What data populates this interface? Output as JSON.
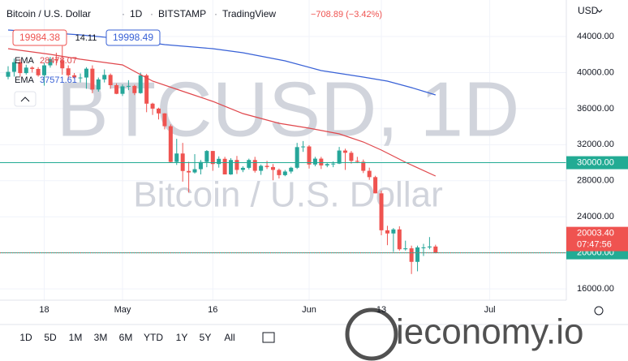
{
  "chart_data": {
    "type": "candlestick",
    "title": "Bitcoin / U.S. Dollar",
    "interval": "1D",
    "exchange": "BITSTAMP",
    "source": "TradingView",
    "change": "−708.89 (−3.42%)",
    "currency": "USD",
    "bid": "19984.38",
    "spread": "14.11",
    "ask": "19998.49",
    "watermark": "BTCUSD, 1D",
    "watermark_subtitle": "Bitcoin / U.S. Dollar",
    "up_color": "#26a69a",
    "down_color": "#ef5350",
    "x": [
      "Apr 12",
      "Apr 13",
      "Apr 14",
      "Apr 15",
      "Apr 16",
      "Apr 17",
      "Apr 18",
      "Apr 19",
      "Apr 20",
      "Apr 21",
      "Apr 22",
      "Apr 23",
      "Apr 24",
      "Apr 25",
      "Apr 26",
      "Apr 27",
      "Apr 28",
      "Apr 29",
      "Apr 30",
      "May 1",
      "May 2",
      "May 3",
      "May 4",
      "May 5",
      "May 6",
      "May 7",
      "May 8",
      "May 9",
      "May 10",
      "May 11",
      "May 12",
      "May 13",
      "May 14",
      "May 15",
      "May 16",
      "May 17",
      "May 18",
      "May 19",
      "May 20",
      "May 21",
      "May 22",
      "May 23",
      "May 24",
      "May 25",
      "May 26",
      "May 27",
      "May 28",
      "May 29",
      "May 30",
      "May 31",
      "Jun 1",
      "Jun 2",
      "Jun 3",
      "Jun 4",
      "Jun 5",
      "Jun 6",
      "Jun 7",
      "Jun 8",
      "Jun 9",
      "Jun 10",
      "Jun 11",
      "Jun 12",
      "Jun 13",
      "Jun 14",
      "Jun 15",
      "Jun 16",
      "Jun 17",
      "Jun 18",
      "Jun 19",
      "Jun 20",
      "Jun 21",
      "Jun 22"
    ],
    "open": [
      39530,
      40080,
      41150,
      39940,
      40550,
      40400,
      39700,
      40800,
      41500,
      41350,
      40470,
      39700,
      39450,
      39450,
      40430,
      38120,
      39240,
      39740,
      38600,
      37640,
      38470,
      38520,
      37720,
      39690,
      36550,
      36000,
      35470,
      34050,
      30080,
      31020,
      29080,
      28920,
      29280,
      30080,
      31300,
      29850,
      30430,
      28700,
      30300,
      29200,
      29430,
      30300,
      29100,
      29650,
      29520,
      29200,
      28620,
      29020,
      29440,
      31730,
      31800,
      29800,
      30450,
      29700,
      29850,
      29900,
      31350,
      31100,
      30200,
      30100,
      29100,
      28400,
      26600,
      22500,
      22150,
      22600,
      20400,
      20500,
      19000,
      20600,
      20600,
      20700
    ],
    "high": [
      40700,
      41550,
      41500,
      40870,
      40700,
      40600,
      41100,
      41750,
      42200,
      42950,
      40800,
      39950,
      39900,
      40600,
      40800,
      39450,
      40350,
      39900,
      38800,
      38700,
      39150,
      38650,
      40000,
      39850,
      36650,
      36100,
      35500,
      34250,
      32650,
      32200,
      30100,
      30950,
      30300,
      31400,
      31300,
      30700,
      30650,
      30500,
      30750,
      29600,
      30450,
      30650,
      29800,
      30200,
      29850,
      29350,
      29200,
      29550,
      32200,
      32400,
      31950,
      30650,
      30650,
      29950,
      30150,
      31750,
      31550,
      31300,
      30650,
      30350,
      29450,
      28550,
      26900,
      23000,
      22750,
      22950,
      21350,
      20800,
      20800,
      21000,
      21750,
      20900
    ],
    "low": [
      39250,
      39550,
      39550,
      39770,
      40000,
      39550,
      38550,
      40550,
      40800,
      39750,
      39200,
      39300,
      38900,
      38200,
      37700,
      37880,
      38900,
      38200,
      37600,
      37400,
      38050,
      37500,
      37650,
      35600,
      35300,
      34800,
      33700,
      30000,
      29750,
      27900,
      26700,
      28800,
      28700,
      29500,
      29100,
      29450,
      28700,
      28650,
      28750,
      28950,
      29250,
      28900,
      28650,
      29300,
      28050,
      28250,
      28500,
      28800,
      29300,
      31200,
      29350,
      29600,
      29300,
      29500,
      29500,
      29850,
      29200,
      29900,
      29950,
      28850,
      28100,
      26600,
      21950,
      20850,
      20100,
      20250,
      20250,
      17650,
      17950,
      19650,
      20400,
      19950
    ],
    "close": [
      40080,
      41150,
      39940,
      40550,
      40400,
      39700,
      40800,
      41500,
      41350,
      40470,
      39700,
      39450,
      39450,
      40430,
      38120,
      39240,
      39740,
      38600,
      37640,
      38470,
      38520,
      37720,
      39690,
      36550,
      36000,
      35470,
      34050,
      30080,
      31020,
      29080,
      28920,
      29280,
      30080,
      31300,
      29850,
      30430,
      28700,
      30300,
      29200,
      29430,
      30300,
      29100,
      29650,
      29520,
      29200,
      28620,
      29020,
      29440,
      31730,
      31800,
      29800,
      30450,
      29700,
      29850,
      29900,
      31350,
      31100,
      30200,
      30100,
      29100,
      28400,
      26600,
      22500,
      22150,
      22600,
      20400,
      20500,
      19000,
      20600,
      20600,
      20700,
      20003.4
    ],
    "ema": [
      {
        "name": "EMA",
        "value_label": "28478.07",
        "color": "#e0474c",
        "x": [
          "Apr 12",
          "Apr 19",
          "Apr 24",
          "May 1",
          "May 6",
          "May 12",
          "May 16",
          "May 21",
          "May 27",
          "Jun 1",
          "Jun 6",
          "Jun 10",
          "Jun 13",
          "Jun 17",
          "Jun 22"
        ],
        "values": [
          42650,
          42020,
          41480,
          40850,
          39050,
          37700,
          36800,
          35450,
          34370,
          33830,
          33200,
          32300,
          31400,
          30050,
          28520
        ]
      },
      {
        "name": "EMA",
        "value_label": "37571.61",
        "color": "#3861d6",
        "x": [
          "Apr 12",
          "Apr 24",
          "May 1",
          "May 8",
          "May 16",
          "May 21",
          "May 28",
          "Jun 3",
          "Jun 10",
          "Jun 14",
          "Jun 18",
          "Jun 22"
        ],
        "values": [
          44720,
          44180,
          43730,
          43100,
          42650,
          42200,
          41300,
          40220,
          39500,
          39050,
          38330,
          37520
        ]
      }
    ],
    "hlines": [
      {
        "value": 30000,
        "label": "30000.00",
        "color": "#22ab94"
      },
      {
        "value": 20000,
        "label": "20000.00",
        "color": "#22ab94"
      }
    ],
    "last_price": {
      "value": 20003.4,
      "label": "20003.40",
      "countdown": "07:47:56"
    },
    "ylim": [
      14750,
      48050
    ],
    "yticks": [
      {
        "value": 16000,
        "label": "16000.00"
      },
      {
        "value": 20000,
        "label": "20000.00"
      },
      {
        "value": 24000,
        "label": "24000.00"
      },
      {
        "value": 28000,
        "label": "28000.00"
      },
      {
        "value": 32000,
        "label": "32000.00"
      },
      {
        "value": 36000,
        "label": "36000.00"
      },
      {
        "value": 40000,
        "label": "40000.00"
      },
      {
        "value": 44000,
        "label": "44000.00"
      }
    ],
    "xticks": [
      {
        "value": "Apr 18",
        "label": "18"
      },
      {
        "value": "May 1",
        "label": "May"
      },
      {
        "value": "May 16",
        "label": "16"
      },
      {
        "value": "Jun 1",
        "label": "Jun"
      },
      {
        "value": "Jun 13",
        "label": "13"
      },
      {
        "value": "Jul 1",
        "label": "Jul"
      }
    ],
    "grid": true,
    "ranges": [
      "1D",
      "5D",
      "1M",
      "3M",
      "6M",
      "YTD",
      "1Y",
      "5Y",
      "All"
    ],
    "brand": "ieconomy.io"
  }
}
